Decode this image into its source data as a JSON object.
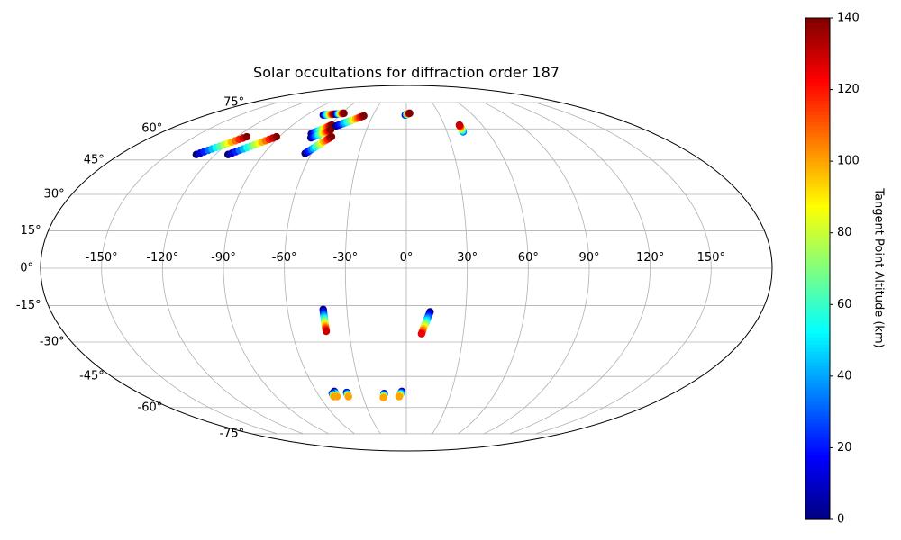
{
  "chart_data": {
    "type": "scatter",
    "title": "Solar occultations for diffraction order 187",
    "projection": "mollweide",
    "grid": true,
    "x_ticks": [
      "-150°",
      "-120°",
      "-90°",
      "-60°",
      "-30°",
      "0°",
      "30°",
      "60°",
      "90°",
      "120°",
      "150°"
    ],
    "y_ticks": [
      "75°",
      "60°",
      "45°",
      "30°",
      "15°",
      "0°",
      "-15°",
      "-30°",
      "-45°",
      "-60°",
      "-75°"
    ],
    "colorbar": {
      "label": "Tangent Point Altitude (km)",
      "colormap": "jet",
      "range": [
        0,
        140
      ],
      "ticks": [
        "0",
        "20",
        "40",
        "60",
        "80",
        "100",
        "120",
        "140"
      ]
    },
    "tracks": [
      {
        "lon0": -132,
        "lat0": 47.5,
        "lon1": -113,
        "lat1": 56,
        "alt0": 0,
        "alt1": 140
      },
      {
        "lon0": -112,
        "lat0": 47.5,
        "lon1": -92,
        "lat1": 56,
        "alt0": 0,
        "alt1": 140
      },
      {
        "lon0": -75,
        "lat0": 67.5,
        "lon1": -66,
        "lat1": 68,
        "alt0": 0,
        "alt1": 140
      },
      {
        "lon0": -64,
        "lat0": 68,
        "lon1": -58,
        "lat1": 68.5,
        "alt0": 0,
        "alt1": 140
      },
      {
        "lon0": -69,
        "lat0": 57.5,
        "lon1": -59,
        "lat1": 62,
        "alt0": 0,
        "alt1": 140
      },
      {
        "lon0": -67,
        "lat0": 55.5,
        "lon1": -57,
        "lat1": 59.5,
        "alt0": 0,
        "alt1": 140
      },
      {
        "lon0": -64,
        "lat0": 48,
        "lon1": -53,
        "lat1": 56,
        "alt0": 0,
        "alt1": 140
      },
      {
        "lon0": -55,
        "lat0": 61.5,
        "lon1": -38,
        "lat1": 67,
        "alt0": 0,
        "alt1": 140
      },
      {
        "lon0": -1,
        "lat0": 67.5,
        "lon1": 3,
        "lat1": 68.5,
        "alt0": 0,
        "alt1": 140
      },
      {
        "lon0": 42,
        "lat0": 58.5,
        "lon1": 42,
        "lat1": 62,
        "alt0": 30,
        "alt1": 130
      },
      {
        "lon0": -42,
        "lat0": -16.5,
        "lon1": -42,
        "lat1": -25.5,
        "alt0": 0,
        "alt1": 130
      },
      {
        "lon0": 12,
        "lat0": -17.5,
        "lon1": 8,
        "lat1": -26.5,
        "alt0": 0,
        "alt1": 125
      },
      {
        "lon0": -48,
        "lat0": -52,
        "lon1": -48,
        "lat1": -54.5,
        "alt0": 0,
        "alt1": 100
      },
      {
        "lon0": -50,
        "lat0": -53,
        "lon1": -50,
        "lat1": -54.5,
        "alt0": 0,
        "alt1": 100
      },
      {
        "lon0": -40,
        "lat0": -52.5,
        "lon1": -40,
        "lat1": -54.5,
        "alt0": 0,
        "alt1": 100
      },
      {
        "lon0": -15,
        "lat0": -53,
        "lon1": -16,
        "lat1": -55,
        "alt0": 0,
        "alt1": 100
      },
      {
        "lon0": -3,
        "lat0": -52,
        "lon1": -5,
        "lat1": -54.5,
        "alt0": 0,
        "alt1": 100
      }
    ]
  }
}
